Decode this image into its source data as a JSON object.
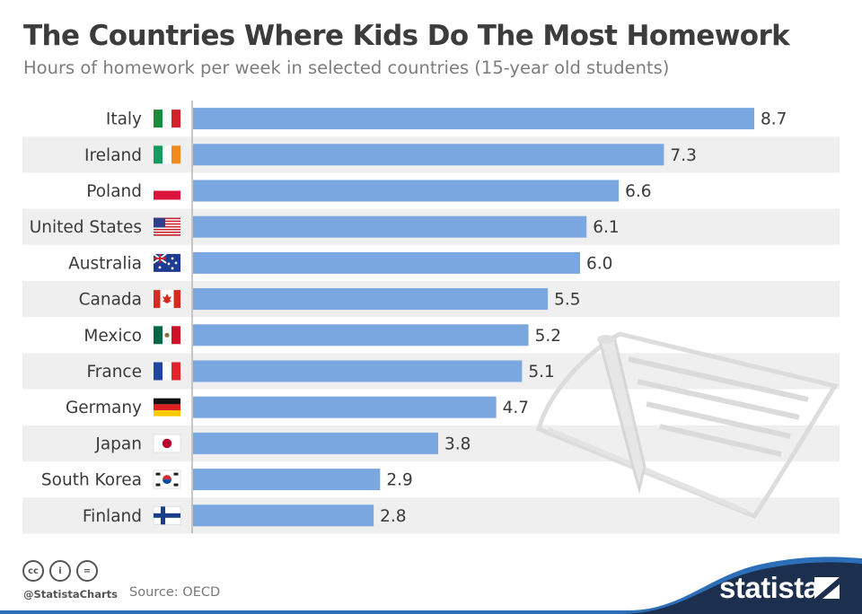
{
  "title": "The Countries Where Kids Do The Most Homework",
  "subtitle": "Hours of homework per week in selected countries (15-year old students)",
  "chart_data": {
    "type": "bar",
    "orientation": "horizontal",
    "title": "The Countries Where Kids Do The Most Homework",
    "subtitle": "Hours of homework per week in selected countries (15-year old students)",
    "xlabel": "",
    "ylabel": "",
    "categories": [
      "Italy",
      "Ireland",
      "Poland",
      "United States",
      "Australia",
      "Canada",
      "Mexico",
      "France",
      "Germany",
      "Japan",
      "South Korea",
      "Finland"
    ],
    "values": [
      8.7,
      7.3,
      6.6,
      6.1,
      6.0,
      5.5,
      5.2,
      5.1,
      4.7,
      3.8,
      2.9,
      2.8
    ],
    "value_labels": [
      "8.7",
      "7.3",
      "6.6",
      "6.1",
      "6.0",
      "5.5",
      "5.2",
      "5.1",
      "4.7",
      "3.8",
      "2.9",
      "2.8"
    ],
    "flags": [
      "italy-flag-icon",
      "ireland-flag-icon",
      "poland-flag-icon",
      "usa-flag-icon",
      "australia-flag-icon",
      "canada-flag-icon",
      "mexico-flag-icon",
      "france-flag-icon",
      "germany-flag-icon",
      "japan-flag-icon",
      "south-korea-flag-icon",
      "finland-flag-icon"
    ],
    "xlim": [
      0,
      8.7
    ],
    "grid": false,
    "legend": "none",
    "bar_color": "#7aa7e0",
    "stripe_color": "#efefef"
  },
  "footer": {
    "handle": "@StatistaCharts",
    "source": "Source: OECD",
    "brand": "statista",
    "cc_icons": [
      "cc-icon",
      "attribution-icon",
      "no-derivatives-icon"
    ],
    "cc_glyphs": [
      "cc",
      "i",
      "="
    ]
  },
  "colors": {
    "title": "#3c3c3c",
    "brand_navy": "#1c2f4e",
    "brand_blue": "#2c6fb8"
  }
}
